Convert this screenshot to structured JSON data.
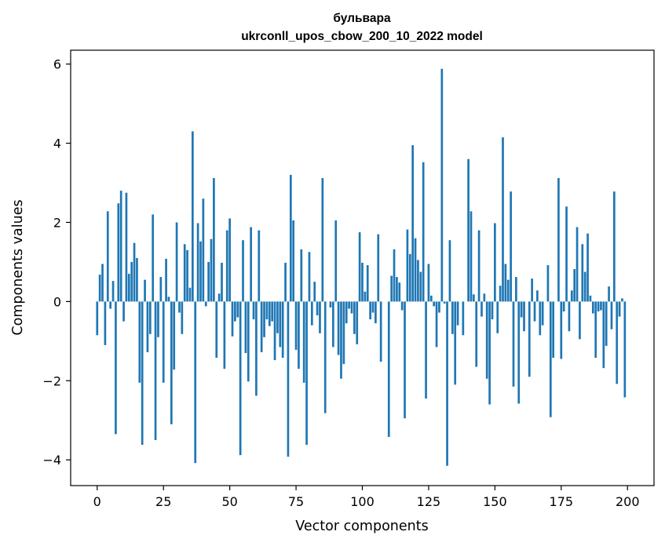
{
  "chart_data": {
    "type": "bar",
    "title": "бульвара",
    "subtitle": "ukrconll_upos_cbow_200_10_2022 model",
    "xlabel": "Vector components",
    "ylabel": "Components values",
    "xlim": [
      -10,
      210
    ],
    "ylim": [
      -4.65,
      6.35
    ],
    "xticks": [
      0,
      25,
      50,
      75,
      100,
      125,
      150,
      175,
      200
    ],
    "yticks": [
      -4,
      -2,
      0,
      2,
      4,
      6
    ],
    "ytick_labels": [
      "−4",
      "−2",
      "0",
      "2",
      "4",
      "6"
    ],
    "grid": false,
    "bar_color": "#1f77b4",
    "values": [
      -0.85,
      0.68,
      0.95,
      -1.1,
      2.28,
      -0.18,
      0.52,
      -3.35,
      2.48,
      2.8,
      -0.5,
      2.75,
      0.7,
      1.0,
      1.48,
      1.1,
      -2.05,
      -3.62,
      0.55,
      -1.28,
      -0.82,
      2.2,
      -3.5,
      -0.9,
      0.62,
      -2.05,
      1.08,
      0.12,
      -3.1,
      -1.72,
      2.0,
      -0.28,
      -0.82,
      1.45,
      1.3,
      0.35,
      4.3,
      -4.08,
      1.98,
      1.52,
      2.6,
      -0.12,
      1.0,
      1.58,
      3.12,
      -1.42,
      0.2,
      0.98,
      -1.7,
      1.8,
      2.1,
      -0.88,
      -0.5,
      -0.4,
      -3.88,
      1.55,
      -1.3,
      -2.02,
      1.88,
      -0.45,
      -2.38,
      1.8,
      -1.28,
      -0.9,
      -0.45,
      -0.62,
      -0.5,
      -1.48,
      -0.8,
      -1.15,
      -1.42,
      0.98,
      -3.92,
      3.2,
      2.05,
      -1.22,
      -1.7,
      1.32,
      -2.05,
      -3.62,
      1.25,
      -0.6,
      0.5,
      -0.35,
      -0.8,
      3.12,
      -2.82,
      0.0,
      -0.15,
      -1.15,
      2.05,
      -1.35,
      -1.95,
      -1.58,
      -0.55,
      -0.18,
      -0.3,
      -0.82,
      -1.08,
      1.75,
      0.98,
      0.25,
      0.92,
      -0.45,
      -0.28,
      -0.55,
      1.7,
      -1.52,
      0.0,
      0.0,
      -3.42,
      0.65,
      1.32,
      0.62,
      0.48,
      -0.22,
      -2.95,
      1.82,
      1.2,
      3.95,
      1.6,
      1.05,
      0.75,
      3.52,
      -2.45,
      0.95,
      0.15,
      -0.12,
      -1.15,
      -0.28,
      5.88,
      -0.05,
      -4.15,
      1.55,
      -0.82,
      -2.1,
      -0.6,
      0.0,
      -0.85,
      0.0,
      3.6,
      2.28,
      0.18,
      -1.65,
      1.8,
      -0.38,
      0.2,
      -1.95,
      -2.6,
      -0.45,
      1.98,
      -0.8,
      0.4,
      4.15,
      0.95,
      0.55,
      2.78,
      -2.15,
      0.62,
      -2.58,
      -0.4,
      -0.75,
      0.0,
      -1.9,
      0.58,
      -0.5,
      0.28,
      -0.85,
      -0.6,
      0.0,
      0.92,
      -2.92,
      -1.42,
      0.0,
      3.12,
      -1.45,
      -0.25,
      2.4,
      -0.75,
      0.28,
      0.82,
      1.88,
      -0.95,
      1.45,
      0.75,
      1.72,
      0.15,
      -0.3,
      -1.42,
      -0.25,
      -0.22,
      -1.68,
      -1.12,
      0.38,
      -0.7,
      2.78,
      -2.08,
      -0.38,
      0.08,
      -2.42
    ]
  }
}
